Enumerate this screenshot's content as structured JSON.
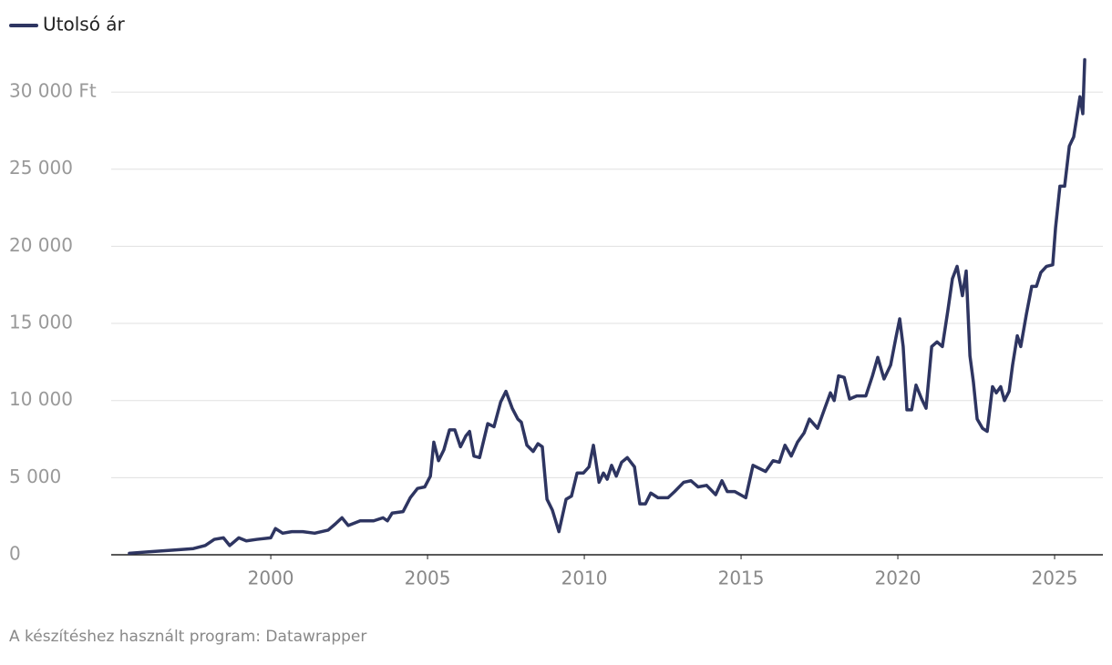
{
  "chart_data": {
    "type": "line",
    "credit": "A készítéshez használt program: Datawrapper",
    "series": [
      {
        "name": "Utolsó ár",
        "color": "#2e3561",
        "x": [
          1995.49,
          1996.16,
          1996.89,
          1997.53,
          1997.91,
          1998.2,
          1998.49,
          1998.69,
          1998.98,
          1999.22,
          1999.56,
          2000.0,
          2000.15,
          2000.38,
          2000.67,
          2001.02,
          2001.4,
          2001.83,
          2002.06,
          2002.27,
          2002.47,
          2002.85,
          2003.28,
          2003.58,
          2003.72,
          2003.87,
          2004.22,
          2004.45,
          2004.68,
          2004.91,
          2005.09,
          2005.2,
          2005.35,
          2005.52,
          2005.7,
          2005.87,
          2006.05,
          2006.22,
          2006.34,
          2006.48,
          2006.66,
          2006.92,
          2007.12,
          2007.33,
          2007.5,
          2007.7,
          2007.88,
          2007.99,
          2008.17,
          2008.37,
          2008.52,
          2008.66,
          2008.81,
          2008.98,
          2009.19,
          2009.42,
          2009.59,
          2009.77,
          2009.97,
          2010.15,
          2010.29,
          2010.47,
          2010.61,
          2010.73,
          2010.87,
          2011.02,
          2011.19,
          2011.37,
          2011.6,
          2011.77,
          2011.95,
          2012.12,
          2012.35,
          2012.67,
          2012.88,
          2013.17,
          2013.4,
          2013.63,
          2013.9,
          2014.19,
          2014.39,
          2014.56,
          2014.8,
          2015.15,
          2015.38,
          2015.58,
          2015.78,
          2016.02,
          2016.22,
          2016.4,
          2016.6,
          2016.8,
          2017.01,
          2017.18,
          2017.44,
          2017.67,
          2017.85,
          2017.97,
          2018.11,
          2018.29,
          2018.46,
          2018.69,
          2018.98,
          2019.19,
          2019.36,
          2019.56,
          2019.77,
          2019.94,
          2020.06,
          2020.17,
          2020.29,
          2020.44,
          2020.58,
          2020.76,
          2020.9,
          2021.08,
          2021.25,
          2021.42,
          2021.6,
          2021.74,
          2021.89,
          2022.06,
          2022.18,
          2022.3,
          2022.41,
          2022.53,
          2022.7,
          2022.85,
          2023.02,
          2023.14,
          2023.28,
          2023.4,
          2023.55,
          2023.66,
          2023.81,
          2023.92,
          2024.1,
          2024.27,
          2024.42,
          2024.56,
          2024.74,
          2024.94,
          2025.03,
          2025.17,
          2025.32,
          2025.47,
          2025.61,
          2025.81,
          2025.9,
          2025.96
        ],
        "values": [
          100,
          200,
          300,
          400,
          600,
          1000,
          1100,
          600,
          1100,
          900,
          1000,
          1100,
          1700,
          1400,
          1500,
          1500,
          1400,
          1600,
          2000,
          2400,
          1900,
          2200,
          2200,
          2400,
          2200,
          2700,
          2800,
          3700,
          4300,
          4400,
          5100,
          7300,
          6100,
          6800,
          8100,
          8100,
          7000,
          7700,
          8000,
          6400,
          6300,
          8500,
          8300,
          9900,
          10600,
          9500,
          8800,
          8600,
          7100,
          6700,
          7200,
          7000,
          3600,
          2900,
          1500,
          3600,
          3800,
          5300,
          5300,
          5700,
          7100,
          4700,
          5300,
          4900,
          5800,
          5100,
          6000,
          6300,
          5700,
          3300,
          3300,
          4000,
          3700,
          3700,
          4100,
          4700,
          4800,
          4400,
          4500,
          3900,
          4800,
          4100,
          4100,
          3700,
          5800,
          5600,
          5400,
          6100,
          6000,
          7100,
          6400,
          7300,
          7900,
          8800,
          8200,
          9500,
          10500,
          10000,
          11600,
          11500,
          10100,
          10300,
          10300,
          11600,
          12800,
          11400,
          12300,
          14100,
          15300,
          13500,
          9400,
          9400,
          11000,
          10100,
          9500,
          13500,
          13800,
          13500,
          15900,
          17900,
          18700,
          16800,
          18400,
          12900,
          11200,
          8800,
          8200,
          8000,
          10900,
          10500,
          10900,
          10000,
          10600,
          12300,
          14200,
          13500,
          15600,
          17400,
          17400,
          18300,
          18700,
          18800,
          21200,
          23900,
          23900,
          26500,
          27100,
          29700,
          28600,
          32100
        ]
      }
    ],
    "xlim": [
      1994.91,
      2026.54
    ],
    "xticks": [
      2000,
      2005,
      2010,
      2015,
      2020,
      2025
    ],
    "ylim": [
      0,
      33000
    ],
    "yticks": [
      0,
      {
        "value": 5000,
        "label": "5 000"
      },
      {
        "value": 10000,
        "label": "10 000"
      },
      {
        "value": 15000,
        "label": "15 000"
      },
      {
        "value": 20000,
        "label": "20 000"
      },
      {
        "value": 25000,
        "label": "25 000"
      },
      {
        "value": 30000,
        "label": "30 000 Ft"
      }
    ],
    "grid": true
  }
}
